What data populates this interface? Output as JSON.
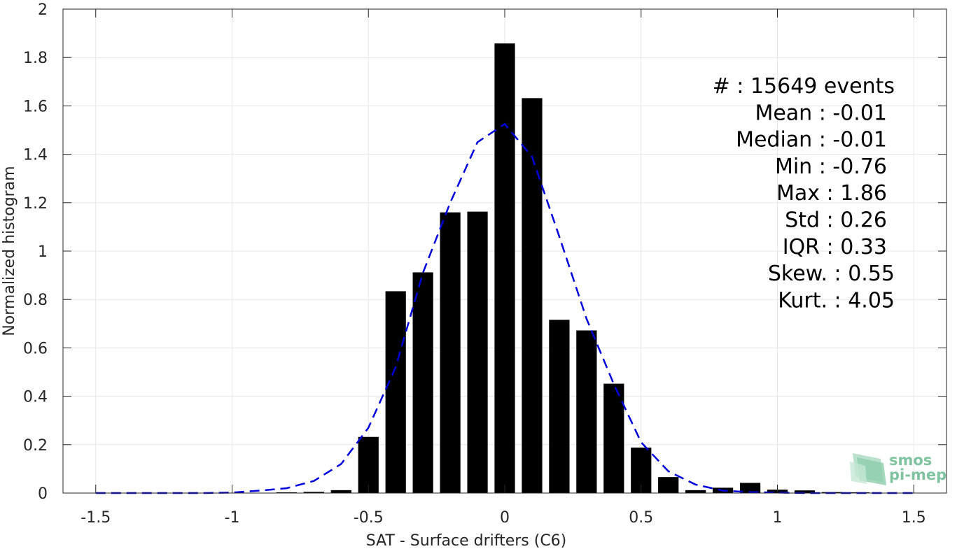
{
  "chart_data": {
    "type": "bar",
    "xlabel": "SAT - Surface drifters (C6)",
    "ylabel": "Normalized histogram",
    "xlim": [
      -1.62,
      1.62
    ],
    "ylim": [
      0,
      2
    ],
    "xticks": [
      -1.5,
      -1,
      -0.5,
      0,
      0.5,
      1,
      1.5
    ],
    "xtick_labels": [
      "-1.5",
      "-1",
      "-0.5",
      "0",
      "0.5",
      "1",
      "1.5"
    ],
    "yticks": [
      0,
      0.2,
      0.4,
      0.6,
      0.8,
      1,
      1.2,
      1.4,
      1.6,
      1.8,
      2
    ],
    "ytick_labels": [
      "0",
      "0.2",
      "0.4",
      "0.6",
      "0.8",
      "1",
      "1.2",
      "1.4",
      "1.6",
      "1.8",
      "2"
    ],
    "grid": true,
    "bar_width": 0.075,
    "bars": {
      "x": [
        -0.8,
        -0.7,
        -0.6,
        -0.5,
        -0.4,
        -0.3,
        -0.2,
        -0.1,
        0.0,
        0.1,
        0.2,
        0.3,
        0.4,
        0.5,
        0.6,
        0.7,
        0.8,
        0.9,
        1.0,
        1.1,
        1.2,
        1.3
      ],
      "values": [
        0.003,
        0.005,
        0.012,
        0.232,
        0.834,
        0.912,
        1.16,
        1.163,
        1.858,
        1.632,
        0.716,
        0.672,
        0.452,
        0.188,
        0.066,
        0.012,
        0.022,
        0.042,
        0.014,
        0.011,
        0.004,
        0.003
      ],
      "color": "#000000"
    },
    "fit_curve": {
      "style": "dashed",
      "color": "#0000dd",
      "x": [
        -1.5,
        -1.4,
        -1.3,
        -1.2,
        -1.1,
        -1.0,
        -0.9,
        -0.8,
        -0.7,
        -0.6,
        -0.5,
        -0.4,
        -0.3,
        -0.2,
        -0.1,
        0.0,
        0.1,
        0.2,
        0.3,
        0.4,
        0.5,
        0.6,
        0.7,
        0.8,
        0.9,
        1.0,
        1.1,
        1.2,
        1.3,
        1.4,
        1.5
      ],
      "y": [
        0.0,
        0.0,
        0.0,
        0.0,
        0.0,
        0.002,
        0.01,
        0.02,
        0.05,
        0.12,
        0.27,
        0.52,
        0.91,
        1.2,
        1.45,
        1.525,
        1.39,
        1.06,
        0.72,
        0.45,
        0.21,
        0.09,
        0.035,
        0.01,
        0.004,
        0.002,
        0.0,
        0.0,
        0.0,
        0.0,
        0.0
      ]
    },
    "stats": [
      "#  : 15649 events",
      "Mean : -0.01",
      "Median : -0.01",
      "Min : -0.76",
      "Max : 1.86",
      "Std : 0.26",
      "IQR : 0.33",
      "Skew. : 0.55",
      "Kurt. : 4.05"
    ]
  },
  "logo": {
    "line1": "smos",
    "line2": "pi-mep",
    "color": "#7fc3a0"
  }
}
